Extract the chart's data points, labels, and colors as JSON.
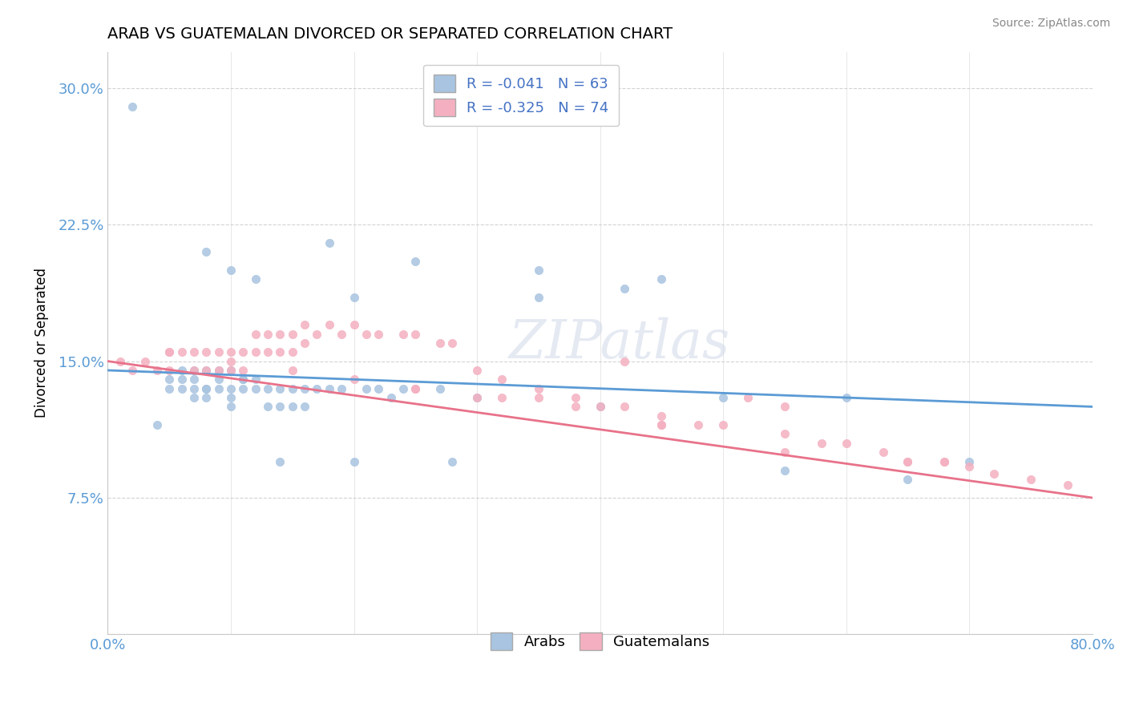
{
  "title": "ARAB VS GUATEMALAN DIVORCED OR SEPARATED CORRELATION CHART",
  "source": "Source: ZipAtlas.com",
  "ylabel": "Divorced or Separated",
  "xlim": [
    0.0,
    0.8
  ],
  "ylim": [
    0.0,
    0.32
  ],
  "xticks": [
    0.0,
    0.8
  ],
  "xtick_labels": [
    "0.0%",
    "80.0%"
  ],
  "yticks": [
    0.0,
    0.075,
    0.15,
    0.225,
    0.3
  ],
  "ytick_labels": [
    "",
    "7.5%",
    "15.0%",
    "22.5%",
    "30.0%"
  ],
  "arab_color": "#a8c4e0",
  "guatemalan_color": "#f4b0c0",
  "arab_line_color": "#5b9bd5",
  "guatemalan_line_color": "#e8728a",
  "legend_text_color": "#4472c4",
  "tick_color": "#5b9bd5",
  "arab_R": -0.041,
  "arab_N": 63,
  "guatemalan_R": -0.325,
  "guatemalan_N": 74,
  "watermark": "ZIPatlas",
  "grid_color": "#c8c8c8",
  "arab_scatter_x": [
    0.02,
    0.06,
    0.07,
    0.08,
    0.08,
    0.09,
    0.1,
    0.1,
    0.11,
    0.11,
    0.04,
    0.05,
    0.06,
    0.07,
    0.07,
    0.08,
    0.09,
    0.1,
    0.11,
    0.12,
    0.05,
    0.06,
    0.07,
    0.08,
    0.09,
    0.1,
    0.12,
    0.13,
    0.13,
    0.14,
    0.14,
    0.15,
    0.15,
    0.16,
    0.16,
    0.17,
    0.18,
    0.19,
    0.2,
    0.21,
    0.22,
    0.23,
    0.24,
    0.27,
    0.3,
    0.35,
    0.42,
    0.5,
    0.6,
    0.7,
    0.12,
    0.18,
    0.25,
    0.35,
    0.45,
    0.55,
    0.65,
    0.08,
    0.1,
    0.14,
    0.2,
    0.28,
    0.4
  ],
  "arab_scatter_y": [
    0.29,
    0.145,
    0.145,
    0.145,
    0.135,
    0.145,
    0.145,
    0.135,
    0.14,
    0.135,
    0.115,
    0.14,
    0.14,
    0.14,
    0.13,
    0.13,
    0.14,
    0.13,
    0.14,
    0.14,
    0.135,
    0.135,
    0.135,
    0.135,
    0.135,
    0.125,
    0.135,
    0.135,
    0.125,
    0.135,
    0.125,
    0.135,
    0.125,
    0.135,
    0.125,
    0.135,
    0.135,
    0.135,
    0.185,
    0.135,
    0.135,
    0.13,
    0.135,
    0.135,
    0.13,
    0.185,
    0.19,
    0.13,
    0.13,
    0.095,
    0.195,
    0.215,
    0.205,
    0.2,
    0.195,
    0.09,
    0.085,
    0.21,
    0.2,
    0.095,
    0.095,
    0.095,
    0.125
  ],
  "guatemalan_scatter_x": [
    0.01,
    0.02,
    0.03,
    0.04,
    0.05,
    0.05,
    0.06,
    0.07,
    0.07,
    0.08,
    0.08,
    0.09,
    0.09,
    0.1,
    0.1,
    0.11,
    0.11,
    0.12,
    0.12,
    0.13,
    0.13,
    0.14,
    0.14,
    0.15,
    0.15,
    0.16,
    0.16,
    0.17,
    0.18,
    0.19,
    0.2,
    0.21,
    0.22,
    0.24,
    0.25,
    0.27,
    0.28,
    0.3,
    0.32,
    0.35,
    0.38,
    0.4,
    0.42,
    0.45,
    0.45,
    0.5,
    0.52,
    0.55,
    0.6,
    0.63,
    0.65,
    0.68,
    0.7,
    0.72,
    0.75,
    0.78,
    0.42,
    0.35,
    0.55,
    0.65,
    0.25,
    0.32,
    0.48,
    0.55,
    0.05,
    0.1,
    0.15,
    0.2,
    0.25,
    0.3,
    0.38,
    0.45,
    0.58,
    0.68
  ],
  "guatemalan_scatter_y": [
    0.15,
    0.145,
    0.15,
    0.145,
    0.155,
    0.145,
    0.155,
    0.155,
    0.145,
    0.155,
    0.145,
    0.155,
    0.145,
    0.155,
    0.145,
    0.155,
    0.145,
    0.165,
    0.155,
    0.165,
    0.155,
    0.165,
    0.155,
    0.165,
    0.155,
    0.17,
    0.16,
    0.165,
    0.17,
    0.165,
    0.17,
    0.165,
    0.165,
    0.165,
    0.165,
    0.16,
    0.16,
    0.145,
    0.14,
    0.135,
    0.13,
    0.125,
    0.125,
    0.12,
    0.115,
    0.115,
    0.13,
    0.11,
    0.105,
    0.1,
    0.095,
    0.095,
    0.092,
    0.088,
    0.085,
    0.082,
    0.15,
    0.13,
    0.125,
    0.095,
    0.135,
    0.13,
    0.115,
    0.1,
    0.155,
    0.15,
    0.145,
    0.14,
    0.135,
    0.13,
    0.125,
    0.115,
    0.105,
    0.095
  ]
}
